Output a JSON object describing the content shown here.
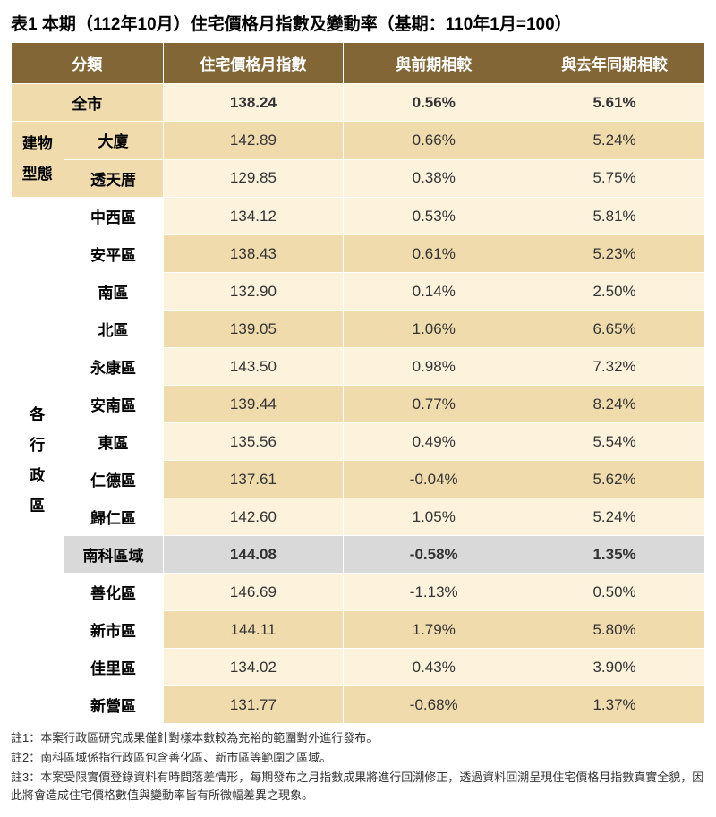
{
  "title": "表1 本期（112年10月）住宅價格月指數及變動率（基期：110年1月=100）",
  "headers": {
    "category": "分類",
    "index": "住宅價格月指數",
    "mom": "與前期相較",
    "yoy": "與去年同期相較"
  },
  "groups": {
    "city": "全市",
    "building": "建物型態",
    "building_l1": "建物",
    "building_l2": "型態",
    "districts_l1": "各",
    "districts_l2": "行",
    "districts_l3": "政",
    "districts_l4": "區"
  },
  "rows": [
    {
      "key": "r0",
      "cat": "全市",
      "idx": "138.24",
      "mom": "0.56%",
      "yoy": "5.61%",
      "shade": "light",
      "group": "city"
    },
    {
      "key": "r1",
      "cat": "大廈",
      "idx": "142.89",
      "mom": "0.66%",
      "yoy": "5.24%",
      "shade": "dark",
      "group": "btype"
    },
    {
      "key": "r2",
      "cat": "透天厝",
      "idx": "129.85",
      "mom": "0.38%",
      "yoy": "5.75%",
      "shade": "light",
      "group": "btype"
    },
    {
      "key": "r3",
      "cat": "中西區",
      "idx": "134.12",
      "mom": "0.53%",
      "yoy": "5.81%",
      "shade": "light",
      "group": "dist"
    },
    {
      "key": "r4",
      "cat": "安平區",
      "idx": "138.43",
      "mom": "0.61%",
      "yoy": "5.23%",
      "shade": "dark",
      "group": "dist"
    },
    {
      "key": "r5",
      "cat": "南區",
      "idx": "132.90",
      "mom": "0.14%",
      "yoy": "2.50%",
      "shade": "light",
      "group": "dist"
    },
    {
      "key": "r6",
      "cat": "北區",
      "idx": "139.05",
      "mom": "1.06%",
      "yoy": "6.65%",
      "shade": "dark",
      "group": "dist"
    },
    {
      "key": "r7",
      "cat": "永康區",
      "idx": "143.50",
      "mom": "0.98%",
      "yoy": "7.32%",
      "shade": "light",
      "group": "dist"
    },
    {
      "key": "r8",
      "cat": "安南區",
      "idx": "139.44",
      "mom": "0.77%",
      "yoy": "8.24%",
      "shade": "dark",
      "group": "dist"
    },
    {
      "key": "r9",
      "cat": "東區",
      "idx": "135.56",
      "mom": "0.49%",
      "yoy": "5.54%",
      "shade": "light",
      "group": "dist"
    },
    {
      "key": "r10",
      "cat": "仁德區",
      "idx": "137.61",
      "mom": "-0.04%",
      "yoy": "5.62%",
      "shade": "dark",
      "group": "dist"
    },
    {
      "key": "r11",
      "cat": "歸仁區",
      "idx": "142.60",
      "mom": "1.05%",
      "yoy": "5.24%",
      "shade": "light",
      "group": "dist"
    },
    {
      "key": "r12",
      "cat": "南科區域",
      "idx": "144.08",
      "mom": "-0.58%",
      "yoy": "1.35%",
      "shade": "gray",
      "group": "dist"
    },
    {
      "key": "r13",
      "cat": "善化區",
      "idx": "146.69",
      "mom": "-1.13%",
      "yoy": "0.50%",
      "shade": "light",
      "group": "dist"
    },
    {
      "key": "r14",
      "cat": "新市區",
      "idx": "144.11",
      "mom": "1.79%",
      "yoy": "5.80%",
      "shade": "dark",
      "group": "dist"
    },
    {
      "key": "r15",
      "cat": "佳里區",
      "idx": "134.02",
      "mom": "0.43%",
      "yoy": "3.90%",
      "shade": "light",
      "group": "dist"
    },
    {
      "key": "r16",
      "cat": "新營區",
      "idx": "131.77",
      "mom": "-0.68%",
      "yoy": "1.37%",
      "shade": "dark",
      "group": "dist"
    }
  ],
  "notes": [
    "註1：本案行政區研究成果僅針對樣本數較為充裕的範圍對外進行發布。",
    "註2：南科區域係指行政區包含善化區、新市區等範圍之區域。",
    "註3：本案受限實價登錄資料有時間落差情形，每期發布之月指數成果將進行回溯修正，透過資料回溯呈現住宅價格月指數真實全貌，因此將會造成住宅價格數值與變動率皆有所微幅差異之現象。"
  ],
  "colors": {
    "header_bg": "#836636",
    "header_fg": "#ffffff",
    "beige_dark": "#f0dbad",
    "beige_light": "#fdf3dd",
    "gray_row": "#d9d9d9",
    "border": "#ffffff"
  }
}
